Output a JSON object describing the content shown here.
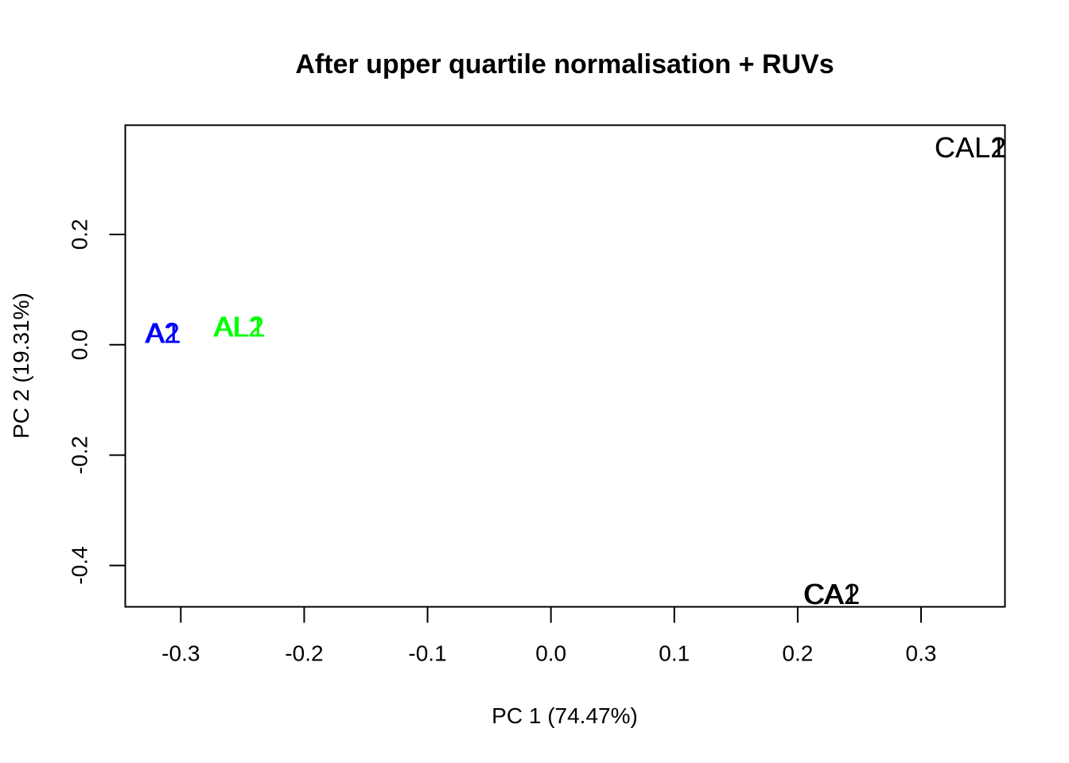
{
  "chart_data": {
    "type": "scatter",
    "title": "After upper quartile normalisation + RUVs",
    "xlabel": "PC 1 (74.47%)",
    "ylabel": "PC 2 (19.31%)",
    "xlim": [
      -0.345,
      0.368
    ],
    "ylim": [
      -0.475,
      0.398
    ],
    "x_ticks": [
      -0.3,
      -0.2,
      -0.1,
      0.0,
      0.1,
      0.2,
      0.3
    ],
    "x_tick_labels": [
      "-0.3",
      "-0.2",
      "-0.1",
      "0.0",
      "0.1",
      "0.2",
      "0.3"
    ],
    "y_ticks": [
      -0.4,
      -0.2,
      0.0,
      0.2
    ],
    "y_tick_labels": [
      "-0.4",
      "-0.2",
      "0.0",
      "0.2"
    ],
    "grid": false,
    "legend": "none",
    "points": [
      {
        "label": "A1",
        "x": -0.314,
        "y": 0.021,
        "color": "#0000ff"
      },
      {
        "label": "A2",
        "x": -0.315,
        "y": 0.021,
        "color": "#0000ff"
      },
      {
        "label": "AL1",
        "x": -0.252,
        "y": 0.033,
        "color": "#00ff00"
      },
      {
        "label": "AL2",
        "x": -0.253,
        "y": 0.033,
        "color": "#00ff00"
      },
      {
        "label": "CA1",
        "x": 0.227,
        "y": -0.452,
        "color": "#000000"
      },
      {
        "label": "CA2",
        "x": 0.228,
        "y": -0.452,
        "color": "#000000"
      },
      {
        "label": "CAL1",
        "x": 0.34,
        "y": 0.358,
        "color": "#000000"
      },
      {
        "label": "CAL2",
        "x": 0.34,
        "y": 0.358,
        "color": "#000000"
      }
    ]
  }
}
